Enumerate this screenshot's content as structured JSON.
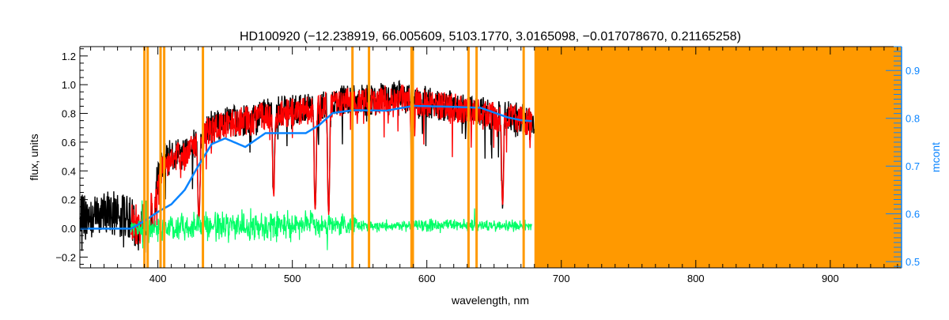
{
  "chart_data": {
    "type": "line",
    "title": "HD100920    (−12.238919, 66.005609, 5103.1770, 3.0165098, −0.017078670, 0.21165258)",
    "xlabel": "wavelength, nm",
    "ylabel": "flux, units",
    "y2label": "mcont",
    "xlim": [
      342,
      953
    ],
    "ylim": [
      -0.275,
      1.265
    ],
    "y2lim": [
      0.487,
      0.95
    ],
    "x_ticks": [
      "400",
      "500",
      "600",
      "700",
      "800",
      "900"
    ],
    "x_tick_values": [
      400,
      500,
      600,
      700,
      800,
      900
    ],
    "y_ticks": [
      "−0.2",
      "0.0",
      "0.2",
      "0.4",
      "0.6",
      "0.8",
      "1.0",
      "1.2"
    ],
    "y_tick_values": [
      -0.2,
      0.0,
      0.2,
      0.4,
      0.6,
      0.8,
      1.0,
      1.2
    ],
    "y2_ticks": [
      "0.5",
      "0.6",
      "0.7",
      "0.8",
      "0.9"
    ],
    "y2_tick_values": [
      0.5,
      0.6,
      0.7,
      0.8,
      0.9
    ],
    "colors": {
      "observed": "#000000",
      "model": "#ff0000",
      "continuum": "#0a84ff",
      "residual": "#00ff66",
      "mask": "#ff9900",
      "axis2": "#0a84ff"
    },
    "series": [
      {
        "name": "observed",
        "x": [
          342,
          350,
          360,
          370,
          380,
          385,
          390,
          395,
          400,
          405,
          410,
          420,
          430,
          440,
          450,
          460,
          470,
          480,
          490,
          500,
          510,
          520,
          530,
          540,
          550,
          560,
          570,
          580,
          590,
          600,
          610,
          620,
          630,
          640,
          650,
          660,
          670,
          680
        ],
        "y": [
          0.25,
          0.22,
          0.28,
          0.25,
          0.22,
          0.15,
          0.18,
          0.3,
          0.45,
          0.6,
          0.62,
          0.62,
          0.72,
          0.82,
          0.85,
          0.86,
          0.88,
          0.9,
          0.92,
          0.93,
          0.94,
          0.96,
          0.99,
          1.0,
          1.0,
          1.0,
          1.02,
          1.03,
          1.0,
          0.99,
          0.97,
          0.96,
          0.94,
          0.92,
          0.9,
          0.89,
          0.88,
          0.85
        ]
      },
      {
        "name": "model",
        "x": [
          380,
          385,
          390,
          395,
          400,
          405,
          410,
          420,
          430,
          440,
          450,
          460,
          470,
          480,
          490,
          500,
          510,
          520,
          530,
          540,
          550,
          560,
          570,
          580,
          590,
          600,
          610,
          620,
          630,
          640,
          650,
          660,
          670,
          678
        ],
        "y": [
          0.2,
          0.16,
          0.18,
          0.28,
          0.42,
          0.57,
          0.6,
          0.6,
          0.7,
          0.8,
          0.82,
          0.84,
          0.86,
          0.88,
          0.9,
          0.91,
          0.92,
          0.94,
          0.97,
          0.98,
          0.98,
          0.98,
          1.0,
          1.01,
          0.98,
          0.97,
          0.95,
          0.94,
          0.92,
          0.9,
          0.88,
          0.87,
          0.86,
          0.84
        ]
      },
      {
        "name": "continuum",
        "axis": "right",
        "x": [
          342,
          380,
          390,
          400,
          410,
          420,
          430,
          440,
          450,
          465,
          480,
          500,
          510,
          520,
          530,
          545,
          570,
          590,
          620,
          640,
          660,
          670,
          678
        ],
        "y": [
          0.569,
          0.569,
          0.585,
          0.604,
          0.62,
          0.65,
          0.7,
          0.746,
          0.758,
          0.74,
          0.769,
          0.769,
          0.769,
          0.786,
          0.811,
          0.817,
          0.816,
          0.826,
          0.824,
          0.822,
          0.802,
          0.796,
          0.794
        ]
      },
      {
        "name": "residual",
        "x": [
          380,
          400,
          420,
          440,
          460,
          480,
          500,
          520,
          540,
          560,
          580,
          600,
          620,
          640,
          660,
          678
        ],
        "y": [
          0.0,
          0.0,
          0.02,
          0.02,
          0.02,
          0.02,
          0.03,
          0.02,
          0.02,
          0.02,
          0.02,
          0.02,
          0.02,
          0.02,
          0.02,
          0.02
        ],
        "scatter": [
          0.04,
          0.06,
          0.07,
          0.07,
          0.07,
          0.08,
          0.07,
          0.06,
          0.05,
          0.03,
          0.03,
          0.03,
          0.03,
          0.03,
          0.03,
          0.03
        ]
      }
    ],
    "absorption_lines": [
      {
        "x": 393.4,
        "depth": 0.12
      },
      {
        "x": 396.8,
        "depth": 0.12
      },
      {
        "x": 430.5,
        "depth": 0.3
      },
      {
        "x": 486.1,
        "depth": 0.55
      },
      {
        "x": 517.0,
        "depth": 0.4
      },
      {
        "x": 527.0,
        "depth": 0.35
      },
      {
        "x": 589.0,
        "depth": 0.65
      },
      {
        "x": 656.3,
        "depth": 0.45
      }
    ],
    "mask_lines": [
      390,
      392.4,
      402,
      404.7,
      433.5,
      544.7,
      557,
      588.6,
      589.6,
      631,
      637,
      672
    ],
    "mask_region": [
      680,
      953
    ]
  }
}
